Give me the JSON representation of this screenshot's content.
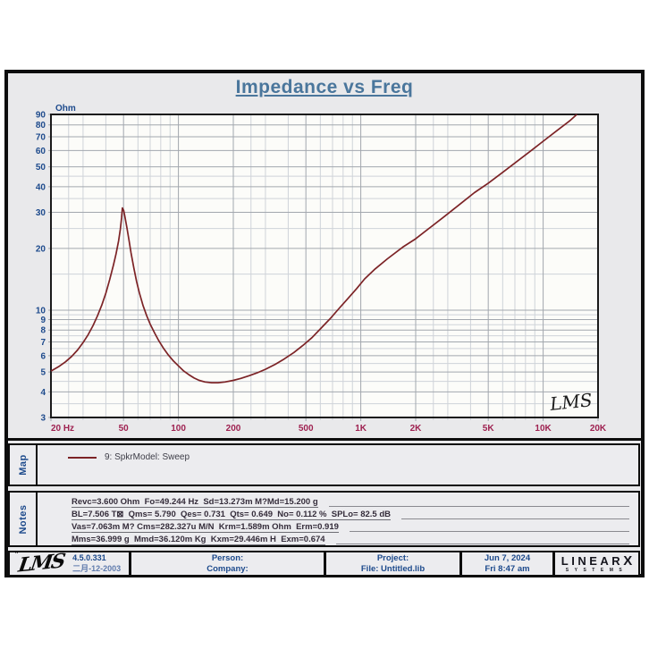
{
  "title": "Impedance vs Freq",
  "chart_data": {
    "type": "line",
    "title": "Impedance vs Freq",
    "x_axis": {
      "scale": "log",
      "min": 20,
      "max": 20000,
      "unit": "Hz",
      "tick_labels": [
        "20 Hz",
        "50",
        "100",
        "200",
        "500",
        "1K",
        "2K",
        "5K",
        "10K",
        "20K"
      ],
      "tick_values": [
        20,
        50,
        100,
        200,
        500,
        1000,
        2000,
        5000,
        10000,
        20000
      ],
      "minor_multipliers": [
        2.5,
        3,
        4,
        6,
        7,
        8,
        9
      ]
    },
    "y_axis": {
      "label": "Ohm",
      "scale": "log",
      "min": 3,
      "max": 90,
      "tick_values": [
        90,
        80,
        70,
        60,
        50,
        40,
        30,
        20,
        10,
        9,
        8,
        7,
        6,
        5,
        4,
        3
      ],
      "minor_values": [
        3.5,
        4.5,
        5.5,
        6.5,
        7.5,
        8.5,
        9.5,
        15,
        25,
        35,
        45
      ]
    },
    "series": [
      {
        "name": "9: SpkrModel: Sweep",
        "color": "#7c2326",
        "points": [
          [
            20,
            5.05
          ],
          [
            22,
            5.3
          ],
          [
            24,
            5.6
          ],
          [
            26,
            5.95
          ],
          [
            28,
            6.4
          ],
          [
            30,
            6.95
          ],
          [
            32,
            7.6
          ],
          [
            34,
            8.4
          ],
          [
            36,
            9.4
          ],
          [
            38,
            10.6
          ],
          [
            40,
            12.1
          ],
          [
            42,
            14.1
          ],
          [
            44,
            16.6
          ],
          [
            45.5,
            18.8
          ],
          [
            47,
            21.8
          ],
          [
            48,
            24.8
          ],
          [
            48.8,
            28.2
          ],
          [
            49.3,
            31.5
          ],
          [
            50.1,
            30.6
          ],
          [
            51,
            28.3
          ],
          [
            52.2,
            25.2
          ],
          [
            53.5,
            22.1
          ],
          [
            55,
            19.0
          ],
          [
            57,
            16.0
          ],
          [
            59,
            13.8
          ],
          [
            61,
            12.2
          ],
          [
            64,
            10.5
          ],
          [
            67,
            9.4
          ],
          [
            70,
            8.55
          ],
          [
            74,
            7.75
          ],
          [
            78,
            7.1
          ],
          [
            83,
            6.5
          ],
          [
            88,
            6.05
          ],
          [
            94,
            5.65
          ],
          [
            100,
            5.35
          ],
          [
            107,
            5.05
          ],
          [
            114,
            4.85
          ],
          [
            122,
            4.67
          ],
          [
            130,
            4.55
          ],
          [
            140,
            4.47
          ],
          [
            152,
            4.43
          ],
          [
            165,
            4.43
          ],
          [
            180,
            4.47
          ],
          [
            200,
            4.55
          ],
          [
            220,
            4.65
          ],
          [
            245,
            4.8
          ],
          [
            270,
            4.95
          ],
          [
            300,
            5.15
          ],
          [
            340,
            5.45
          ],
          [
            380,
            5.78
          ],
          [
            430,
            6.22
          ],
          [
            480,
            6.72
          ],
          [
            540,
            7.35
          ],
          [
            600,
            8.1
          ],
          [
            680,
            9.1
          ],
          [
            760,
            10.2
          ],
          [
            850,
            11.4
          ],
          [
            950,
            12.75
          ],
          [
            1050,
            14.2
          ],
          [
            1200,
            15.9
          ],
          [
            1400,
            17.8
          ],
          [
            1700,
            20.3
          ],
          [
            2000,
            22.3
          ],
          [
            2400,
            25.3
          ],
          [
            2900,
            28.8
          ],
          [
            3500,
            32.9
          ],
          [
            4200,
            37.4
          ],
          [
            5000,
            41.6
          ],
          [
            6000,
            47
          ],
          [
            7200,
            53.2
          ],
          [
            8600,
            60
          ],
          [
            10000,
            66.6
          ],
          [
            12000,
            75.4
          ],
          [
            14000,
            83.8
          ],
          [
            15300,
            90
          ]
        ]
      }
    ],
    "watermark": "LMS",
    "grid": "log-log, minor and major gridlines on"
  },
  "map": {
    "label": "Map",
    "legend_text": "9: SpkrModel: Sweep",
    "legend_color": "#7c2326"
  },
  "notes": {
    "label": "Notes",
    "lines": [
      "Revc=3.600 Ohm  Fo=49.244 Hz  Sd=13.273m M?Md=15.200 g",
      "BL=7.506 T⊠  Qms= 5.790  Qes= 0.731  Qts= 0.649  No= 0.112 %  SPLo= 82.5 dB",
      "Vas=7.063m M? Cms=282.327u M/N  Krm=1.589m Ohm  Erm=0.919",
      "Mms=36.999 g  Mmd=36.120m Kg  Kxm=29.446m H  Exm=0.674"
    ]
  },
  "footer": {
    "logo": "LMS",
    "version": "4.5.0.331",
    "version_date": "二月-12-2003",
    "person_label": "Person:",
    "company_label": "Company:",
    "project_label": "Project:",
    "file_label": "File: Untitled.lib",
    "date": "Jun  7, 2024",
    "time": "Fri  8:47 am",
    "brand": "LINEAR",
    "brand_x": "X",
    "brand_sub": "SYSTEMS"
  }
}
